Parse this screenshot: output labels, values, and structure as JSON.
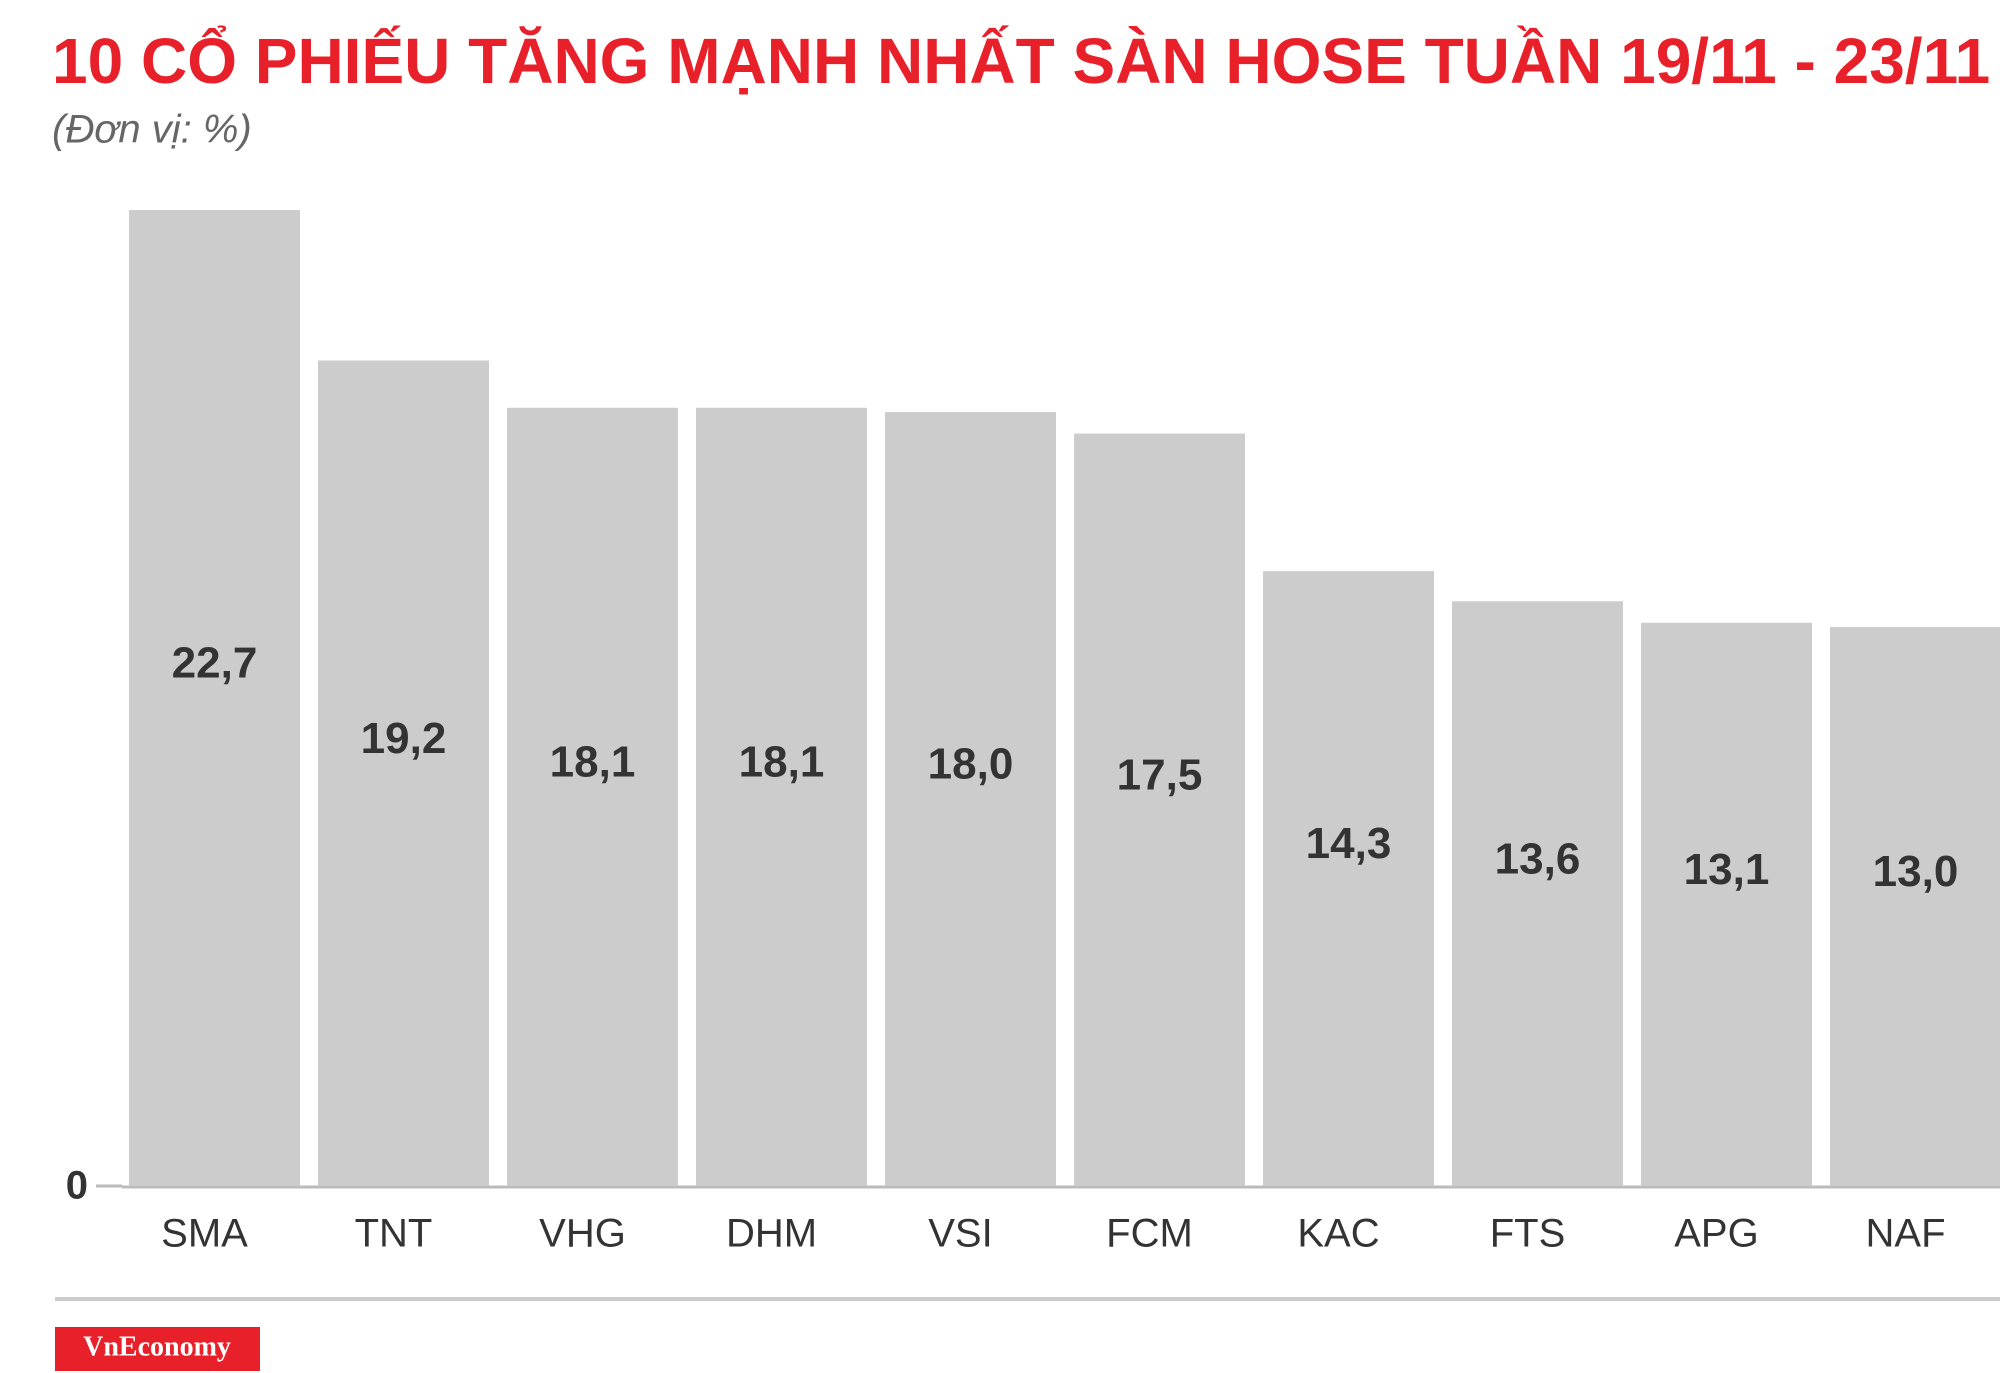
{
  "chart_data": {
    "type": "bar",
    "title": "10 CỔ PHIẾU TĂNG MẠNH NHẤT SÀN HOSE TUẦN 19/11 - 23/11",
    "subtitle": "(Đơn vị: %)",
    "categories": [
      "SMA",
      "TNT",
      "VHG",
      "DHM",
      "VSI",
      "FCM",
      "KAC",
      "FTS",
      "APG",
      "NAF"
    ],
    "values": [
      22.7,
      19.2,
      18.1,
      18.1,
      18.0,
      17.5,
      14.3,
      13.6,
      13.1,
      13.0
    ],
    "value_labels": [
      "22,7",
      "19,2",
      "18,1",
      "18,1",
      "18,0",
      "17,5",
      "14,3",
      "13,6",
      "13,1",
      "13,0"
    ],
    "color": "#cdcccc",
    "ylim": [
      0,
      22.7
    ],
    "yticks": [
      0
    ],
    "grid": false,
    "logo": "VnEconomy"
  }
}
